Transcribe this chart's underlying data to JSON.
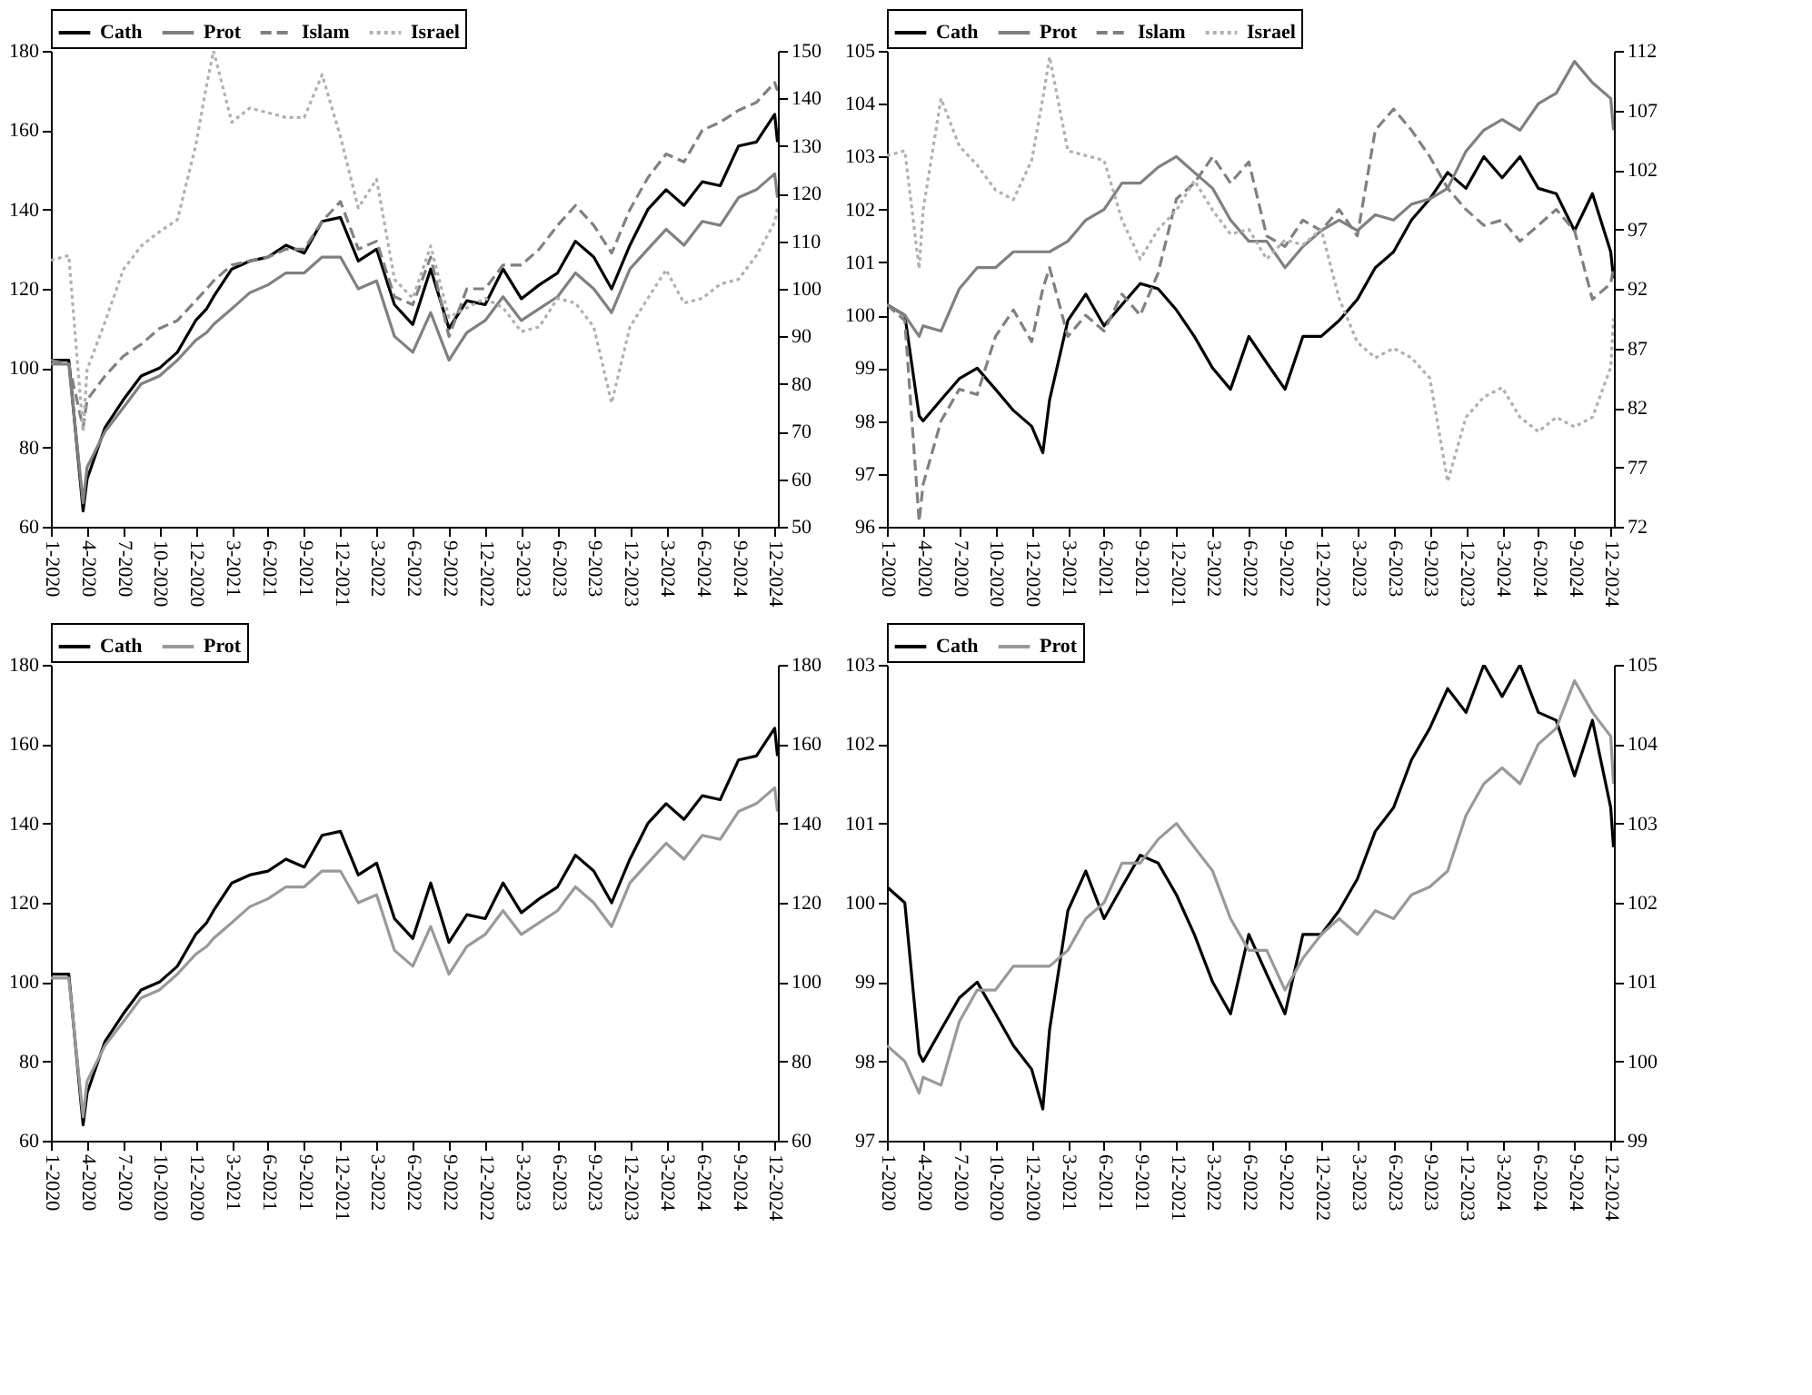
{
  "chart_data": [
    {
      "type": "line",
      "legend": "top",
      "x": [
        "2020-01-02",
        "2020-02-16",
        "2020-03-23",
        "2020-04-02",
        "2020-05-17",
        "2020-07-02",
        "2020-08-16",
        "2020-10-01",
        "2020-11-15",
        "2020-12-31",
        "2021-01-28",
        "2021-02-14",
        "2021-04-01",
        "2021-05-16",
        "2021-07-01",
        "2021-08-15",
        "2021-09-30",
        "2021-11-14",
        "2021-12-30",
        "2022-02-13",
        "2022-03-31",
        "2022-05-15",
        "2022-06-30",
        "2022-08-14",
        "2022-09-29",
        "2022-11-13",
        "2022-12-29",
        "2023-02-12",
        "2023-03-30",
        "2023-05-14",
        "2023-06-29",
        "2023-08-13",
        "2023-09-28",
        "2023-11-12",
        "2023-12-28",
        "2024-02-11",
        "2024-03-28",
        "2024-05-12",
        "2024-06-27",
        "2024-08-11",
        "2024-09-26",
        "2024-11-10",
        "2024-12-26",
        "2025-01-02"
      ],
      "xlim": [
        "2020-01-02",
        "2025-01-03"
      ],
      "xticks": [
        {
          "value": "2020-01-02",
          "label": "1-2020"
        },
        {
          "value": "2020-04-02",
          "label": "4-2020"
        },
        {
          "value": "2020-07-02",
          "label": "7-2020"
        },
        {
          "value": "2020-10-01",
          "label": "10-2020"
        },
        {
          "value": "2020-12-31",
          "label": "12-2020"
        },
        {
          "value": "2021-04-01",
          "label": "3-2021"
        },
        {
          "value": "2021-07-01",
          "label": "6-2021"
        },
        {
          "value": "2021-09-30",
          "label": "9-2021"
        },
        {
          "value": "2021-12-30",
          "label": "12-2021"
        },
        {
          "value": "2022-03-31",
          "label": "3-2022"
        },
        {
          "value": "2022-06-30",
          "label": "6-2022"
        },
        {
          "value": "2022-09-29",
          "label": "9-2022"
        },
        {
          "value": "2022-12-29",
          "label": "12-2022"
        },
        {
          "value": "2023-03-30",
          "label": "3-2023"
        },
        {
          "value": "2023-06-29",
          "label": "6-2023"
        },
        {
          "value": "2023-09-28",
          "label": "9-2023"
        },
        {
          "value": "2023-12-28",
          "label": "12-2023"
        },
        {
          "value": "2024-03-28",
          "label": "3-2024"
        },
        {
          "value": "2024-06-27",
          "label": "6-2024"
        },
        {
          "value": "2024-09-26",
          "label": "9-2024"
        },
        {
          "value": "2024-12-26",
          "label": "12-2024"
        }
      ],
      "ylim": [
        60,
        180
      ],
      "yticks": [
        60,
        80,
        100,
        120,
        140,
        160,
        180
      ],
      "y2lim": [
        50,
        150
      ],
      "y2ticks": [
        50,
        60,
        70,
        80,
        90,
        100,
        110,
        120,
        130,
        140,
        150
      ],
      "series": [
        {
          "name": "Cath",
          "color": "#000000",
          "line_style": "solid",
          "values": [
            102,
            102,
            64,
            72,
            85,
            92,
            98,
            100,
            104,
            112,
            115,
            118,
            125,
            127,
            128,
            131,
            129,
            137,
            138,
            127,
            130,
            116,
            111,
            125,
            110,
            117,
            116,
            125,
            117.5,
            121,
            124,
            132,
            128,
            120,
            131,
            140,
            145,
            141,
            147,
            146,
            156,
            157,
            164,
            157
          ]
        },
        {
          "name": "Prot",
          "color": "#808080",
          "line_style": "solid",
          "values": [
            101,
            101,
            66,
            75,
            84,
            90,
            96,
            98,
            102,
            107,
            109,
            111,
            115,
            119,
            121,
            124,
            124,
            128,
            128,
            120,
            122,
            108,
            104,
            114,
            102,
            109,
            112,
            118,
            112,
            115,
            118,
            124,
            120,
            114,
            125,
            130,
            135,
            131,
            137,
            136,
            143,
            145,
            149,
            143
          ]
        },
        {
          "name": "Islam",
          "color": "#808080",
          "line_style": "dashed",
          "values": [
            102,
            101,
            85,
            92,
            98,
            103,
            106,
            110,
            112,
            117,
            120,
            122,
            126,
            127,
            128,
            130,
            130,
            137,
            142,
            130,
            132,
            118,
            116,
            128,
            108,
            120,
            120,
            126,
            126,
            130,
            136,
            141,
            136,
            129,
            140,
            148,
            154,
            152,
            160,
            162,
            165,
            167,
            172,
            170
          ]
        },
        {
          "name": "Israel",
          "color": "#b0b0b0",
          "line_style": "dotted",
          "axis": "y2",
          "values": [
            106,
            107,
            70,
            83,
            93,
            104,
            109,
            112,
            114.5,
            130,
            143,
            150,
            135,
            138,
            137,
            136,
            136,
            145,
            132,
            117,
            123,
            102,
            98,
            109,
            94,
            96,
            98,
            96,
            91,
            92,
            98,
            97,
            92,
            76,
            92,
            98,
            104,
            97,
            98,
            101,
            102,
            107,
            114,
            117
          ]
        }
      ]
    },
    {
      "type": "line",
      "legend": "top",
      "x": [
        "2020-01-02",
        "2020-02-16",
        "2020-03-23",
        "2020-04-02",
        "2020-05-17",
        "2020-07-02",
        "2020-08-16",
        "2020-10-01",
        "2020-11-15",
        "2020-12-31",
        "2021-01-28",
        "2021-02-14",
        "2021-04-01",
        "2021-05-16",
        "2021-07-01",
        "2021-08-15",
        "2021-09-30",
        "2021-11-14",
        "2021-12-30",
        "2022-02-13",
        "2022-03-31",
        "2022-05-15",
        "2022-06-30",
        "2022-08-14",
        "2022-09-29",
        "2022-11-13",
        "2022-12-29",
        "2023-02-12",
        "2023-03-30",
        "2023-05-14",
        "2023-06-29",
        "2023-08-13",
        "2023-09-28",
        "2023-11-12",
        "2023-12-28",
        "2024-02-11",
        "2024-03-28",
        "2024-05-12",
        "2024-06-27",
        "2024-08-11",
        "2024-09-26",
        "2024-11-10",
        "2024-12-26",
        "2025-01-02"
      ],
      "xlim": [
        "2020-01-02",
        "2025-01-03"
      ],
      "xticks": [
        {
          "value": "2020-01-02",
          "label": "1-2020"
        },
        {
          "value": "2020-04-02",
          "label": "4-2020"
        },
        {
          "value": "2020-07-02",
          "label": "7-2020"
        },
        {
          "value": "2020-10-01",
          "label": "10-2020"
        },
        {
          "value": "2020-12-31",
          "label": "12-2020"
        },
        {
          "value": "2021-04-01",
          "label": "3-2021"
        },
        {
          "value": "2021-07-01",
          "label": "6-2021"
        },
        {
          "value": "2021-09-30",
          "label": "9-2021"
        },
        {
          "value": "2021-12-30",
          "label": "12-2021"
        },
        {
          "value": "2022-03-31",
          "label": "3-2022"
        },
        {
          "value": "2022-06-30",
          "label": "6-2022"
        },
        {
          "value": "2022-09-29",
          "label": "9-2022"
        },
        {
          "value": "2022-12-29",
          "label": "12-2022"
        },
        {
          "value": "2023-03-30",
          "label": "3-2023"
        },
        {
          "value": "2023-06-29",
          "label": "6-2023"
        },
        {
          "value": "2023-09-28",
          "label": "9-2023"
        },
        {
          "value": "2023-12-28",
          "label": "12-2023"
        },
        {
          "value": "2024-03-28",
          "label": "3-2024"
        },
        {
          "value": "2024-06-27",
          "label": "6-2024"
        },
        {
          "value": "2024-09-26",
          "label": "9-2024"
        },
        {
          "value": "2024-12-26",
          "label": "12-2024"
        }
      ],
      "ylim": [
        96,
        105
      ],
      "yticks": [
        96,
        97,
        98,
        99,
        100,
        101,
        102,
        103,
        104,
        105
      ],
      "y2lim": [
        72,
        112
      ],
      "y2ticks": [
        72,
        77,
        82,
        87,
        92,
        97,
        102,
        107,
        112
      ],
      "series": [
        {
          "name": "Cath",
          "color": "#000000",
          "line_style": "solid",
          "values": [
            100.2,
            100.0,
            98.1,
            98.0,
            98.4,
            98.8,
            99.0,
            98.6,
            98.2,
            97.9,
            97.4,
            98.4,
            99.9,
            100.4,
            99.8,
            100.2,
            100.6,
            100.5,
            100.1,
            99.6,
            99.0,
            98.6,
            99.6,
            99.1,
            98.6,
            99.6,
            99.6,
            99.9,
            100.3,
            100.9,
            101.2,
            101.8,
            102.2,
            102.7,
            102.4,
            103.0,
            102.6,
            103.0,
            102.4,
            102.3,
            101.6,
            102.3,
            101.2,
            100.7
          ]
        },
        {
          "name": "Prot",
          "color": "#808080",
          "line_style": "solid",
          "values": [
            100.2,
            100.0,
            99.6,
            99.8,
            99.7,
            100.5,
            100.9,
            100.9,
            101.2,
            101.2,
            101.2,
            101.2,
            101.4,
            101.8,
            102.0,
            102.5,
            102.5,
            102.8,
            103.0,
            102.7,
            102.4,
            101.8,
            101.4,
            101.4,
            100.9,
            101.3,
            101.6,
            101.8,
            101.6,
            101.9,
            101.8,
            102.1,
            102.2,
            102.4,
            103.1,
            103.5,
            103.7,
            103.5,
            104.0,
            104.2,
            104.8,
            104.4,
            104.1,
            103.5
          ]
        },
        {
          "name": "Islam",
          "color": "#808080",
          "line_style": "dashed",
          "values": [
            100.2,
            99.9,
            96.1,
            96.8,
            98.0,
            98.6,
            98.5,
            99.6,
            100.1,
            99.5,
            100.5,
            100.9,
            99.6,
            100.0,
            99.7,
            100.4,
            100.0,
            100.8,
            102.2,
            102.5,
            103.0,
            102.5,
            102.9,
            101.5,
            101.3,
            101.8,
            101.6,
            102.0,
            101.5,
            103.5,
            103.9,
            103.5,
            103.0,
            102.4,
            102.0,
            101.7,
            101.8,
            101.4,
            101.7,
            102.0,
            101.6,
            100.3,
            100.6,
            100.9
          ]
        },
        {
          "name": "Israel",
          "color": "#b0b0b0",
          "line_style": "dotted",
          "axis": "y2",
          "values": [
            103.2,
            103.6,
            93.7,
            98.6,
            108,
            104.0,
            102.4,
            100.3,
            99.5,
            102.8,
            108,
            111.5,
            103.6,
            103.2,
            102.8,
            97.8,
            94.5,
            97.0,
            98.6,
            101.1,
            98.6,
            96.6,
            97.0,
            94.5,
            96.1,
            95.7,
            97.0,
            91.2,
            87.5,
            86.2,
            87.0,
            86.2,
            84.5,
            75.8,
            81.2,
            82.9,
            83.7,
            81.2,
            80.0,
            81.2,
            80.4,
            81.2,
            85.4,
            89.5
          ]
        }
      ]
    },
    {
      "type": "line",
      "legend": "top",
      "x": [
        "2020-01-02",
        "2020-02-16",
        "2020-03-23",
        "2020-04-02",
        "2020-05-17",
        "2020-07-02",
        "2020-08-16",
        "2020-10-01",
        "2020-11-15",
        "2020-12-31",
        "2021-01-28",
        "2021-02-14",
        "2021-04-01",
        "2021-05-16",
        "2021-07-01",
        "2021-08-15",
        "2021-09-30",
        "2021-11-14",
        "2021-12-30",
        "2022-02-13",
        "2022-03-31",
        "2022-05-15",
        "2022-06-30",
        "2022-08-14",
        "2022-09-29",
        "2022-11-13",
        "2022-12-29",
        "2023-02-12",
        "2023-03-30",
        "2023-05-14",
        "2023-06-29",
        "2023-08-13",
        "2023-09-28",
        "2023-11-12",
        "2023-12-28",
        "2024-02-11",
        "2024-03-28",
        "2024-05-12",
        "2024-06-27",
        "2024-08-11",
        "2024-09-26",
        "2024-11-10",
        "2024-12-26",
        "2025-01-02"
      ],
      "xlim": [
        "2020-01-02",
        "2025-01-03"
      ],
      "xticks": [
        {
          "value": "2020-01-02",
          "label": "1-2020"
        },
        {
          "value": "2020-04-02",
          "label": "4-2020"
        },
        {
          "value": "2020-07-02",
          "label": "7-2020"
        },
        {
          "value": "2020-10-01",
          "label": "10-2020"
        },
        {
          "value": "2020-12-31",
          "label": "12-2020"
        },
        {
          "value": "2021-04-01",
          "label": "3-2021"
        },
        {
          "value": "2021-07-01",
          "label": "6-2021"
        },
        {
          "value": "2021-09-30",
          "label": "9-2021"
        },
        {
          "value": "2021-12-30",
          "label": "12-2021"
        },
        {
          "value": "2022-03-31",
          "label": "3-2022"
        },
        {
          "value": "2022-06-30",
          "label": "6-2022"
        },
        {
          "value": "2022-09-29",
          "label": "9-2022"
        },
        {
          "value": "2022-12-29",
          "label": "12-2022"
        },
        {
          "value": "2023-03-30",
          "label": "3-2023"
        },
        {
          "value": "2023-06-29",
          "label": "6-2023"
        },
        {
          "value": "2023-09-28",
          "label": "9-2023"
        },
        {
          "value": "2023-12-28",
          "label": "12-2023"
        },
        {
          "value": "2024-03-28",
          "label": "3-2024"
        },
        {
          "value": "2024-06-27",
          "label": "6-2024"
        },
        {
          "value": "2024-09-26",
          "label": "9-2024"
        },
        {
          "value": "2024-12-26",
          "label": "12-2024"
        }
      ],
      "ylim": [
        60,
        180
      ],
      "yticks": [
        60,
        80,
        100,
        120,
        140,
        160,
        180
      ],
      "y2lim": [
        60,
        180
      ],
      "y2ticks": [
        60,
        80,
        100,
        120,
        140,
        160,
        180
      ],
      "series": [
        {
          "name": "Cath",
          "color": "#000000",
          "line_style": "solid",
          "values": [
            102,
            102,
            64,
            72,
            85,
            92,
            98,
            100,
            104,
            112,
            115,
            118,
            125,
            127,
            128,
            131,
            129,
            137,
            138,
            127,
            130,
            116,
            111,
            125,
            110,
            117,
            116,
            125,
            117.5,
            121,
            124,
            132,
            128,
            120,
            131,
            140,
            145,
            141,
            147,
            146,
            156,
            157,
            164,
            157
          ]
        },
        {
          "name": "Prot",
          "color": "#999999",
          "line_style": "solid",
          "axis": "y2",
          "values": [
            101,
            101,
            66,
            75,
            84,
            90,
            96,
            98,
            102,
            107,
            109,
            111,
            115,
            119,
            121,
            124,
            124,
            128,
            128,
            120,
            122,
            108,
            104,
            114,
            102,
            109,
            112,
            118,
            112,
            115,
            118,
            124,
            120,
            114,
            125,
            130,
            135,
            131,
            137,
            136,
            143,
            145,
            149,
            143
          ]
        }
      ]
    },
    {
      "type": "line",
      "legend": "top",
      "x": [
        "2020-01-02",
        "2020-02-16",
        "2020-03-23",
        "2020-04-02",
        "2020-05-17",
        "2020-07-02",
        "2020-08-16",
        "2020-10-01",
        "2020-11-15",
        "2020-12-31",
        "2021-01-28",
        "2021-02-14",
        "2021-04-01",
        "2021-05-16",
        "2021-07-01",
        "2021-08-15",
        "2021-09-30",
        "2021-11-14",
        "2021-12-30",
        "2022-02-13",
        "2022-03-31",
        "2022-05-15",
        "2022-06-30",
        "2022-08-14",
        "2022-09-29",
        "2022-11-13",
        "2022-12-29",
        "2023-02-12",
        "2023-03-30",
        "2023-05-14",
        "2023-06-29",
        "2023-08-13",
        "2023-09-28",
        "2023-11-12",
        "2023-12-28",
        "2024-02-11",
        "2024-03-28",
        "2024-05-12",
        "2024-06-27",
        "2024-08-11",
        "2024-09-26",
        "2024-11-10",
        "2024-12-26",
        "2025-01-02"
      ],
      "xlim": [
        "2020-01-02",
        "2025-01-03"
      ],
      "xticks": [
        {
          "value": "2020-01-02",
          "label": "1-2020"
        },
        {
          "value": "2020-04-02",
          "label": "4-2020"
        },
        {
          "value": "2020-07-02",
          "label": "7-2020"
        },
        {
          "value": "2020-10-01",
          "label": "10-2020"
        },
        {
          "value": "2020-12-31",
          "label": "12-2020"
        },
        {
          "value": "2021-04-01",
          "label": "3-2021"
        },
        {
          "value": "2021-07-01",
          "label": "6-2021"
        },
        {
          "value": "2021-09-30",
          "label": "9-2021"
        },
        {
          "value": "2021-12-30",
          "label": "12-2021"
        },
        {
          "value": "2022-03-31",
          "label": "3-2022"
        },
        {
          "value": "2022-06-30",
          "label": "6-2022"
        },
        {
          "value": "2022-09-29",
          "label": "9-2022"
        },
        {
          "value": "2022-12-29",
          "label": "12-2022"
        },
        {
          "value": "2023-03-30",
          "label": "3-2023"
        },
        {
          "value": "2023-06-29",
          "label": "6-2023"
        },
        {
          "value": "2023-09-28",
          "label": "9-2023"
        },
        {
          "value": "2023-12-28",
          "label": "12-2023"
        },
        {
          "value": "2024-03-28",
          "label": "3-2024"
        },
        {
          "value": "2024-06-27",
          "label": "6-2024"
        },
        {
          "value": "2024-09-26",
          "label": "9-2024"
        },
        {
          "value": "2024-12-26",
          "label": "12-2024"
        }
      ],
      "ylim": [
        97,
        103
      ],
      "yticks": [
        97,
        98,
        99,
        100,
        101,
        102,
        103
      ],
      "y2lim": [
        99,
        105
      ],
      "y2ticks": [
        99,
        100,
        101,
        102,
        103,
        104,
        105
      ],
      "series": [
        {
          "name": "Cath",
          "color": "#000000",
          "line_style": "solid",
          "values": [
            100.2,
            100.0,
            98.1,
            98.0,
            98.4,
            98.8,
            99.0,
            98.6,
            98.2,
            97.9,
            97.4,
            98.4,
            99.9,
            100.4,
            99.8,
            100.2,
            100.6,
            100.5,
            100.1,
            99.6,
            99.0,
            98.6,
            99.6,
            99.1,
            98.6,
            99.6,
            99.6,
            99.9,
            100.3,
            100.9,
            101.2,
            101.8,
            102.2,
            102.7,
            102.4,
            103.0,
            102.6,
            103.0,
            102.4,
            102.3,
            101.6,
            102.3,
            101.2,
            100.7
          ]
        },
        {
          "name": "Prot",
          "color": "#999999",
          "line_style": "solid",
          "axis": "y2",
          "values": [
            100.2,
            100.0,
            99.6,
            99.8,
            99.7,
            100.5,
            100.9,
            100.9,
            101.2,
            101.2,
            101.2,
            101.2,
            101.4,
            101.8,
            102.0,
            102.5,
            102.5,
            102.8,
            103.0,
            102.7,
            102.4,
            101.8,
            101.4,
            101.4,
            100.9,
            101.3,
            101.6,
            101.8,
            101.6,
            101.9,
            101.8,
            102.1,
            102.2,
            102.4,
            103.1,
            103.5,
            103.7,
            103.5,
            104.0,
            104.2,
            104.8,
            104.4,
            104.1,
            103.5
          ]
        }
      ]
    }
  ]
}
